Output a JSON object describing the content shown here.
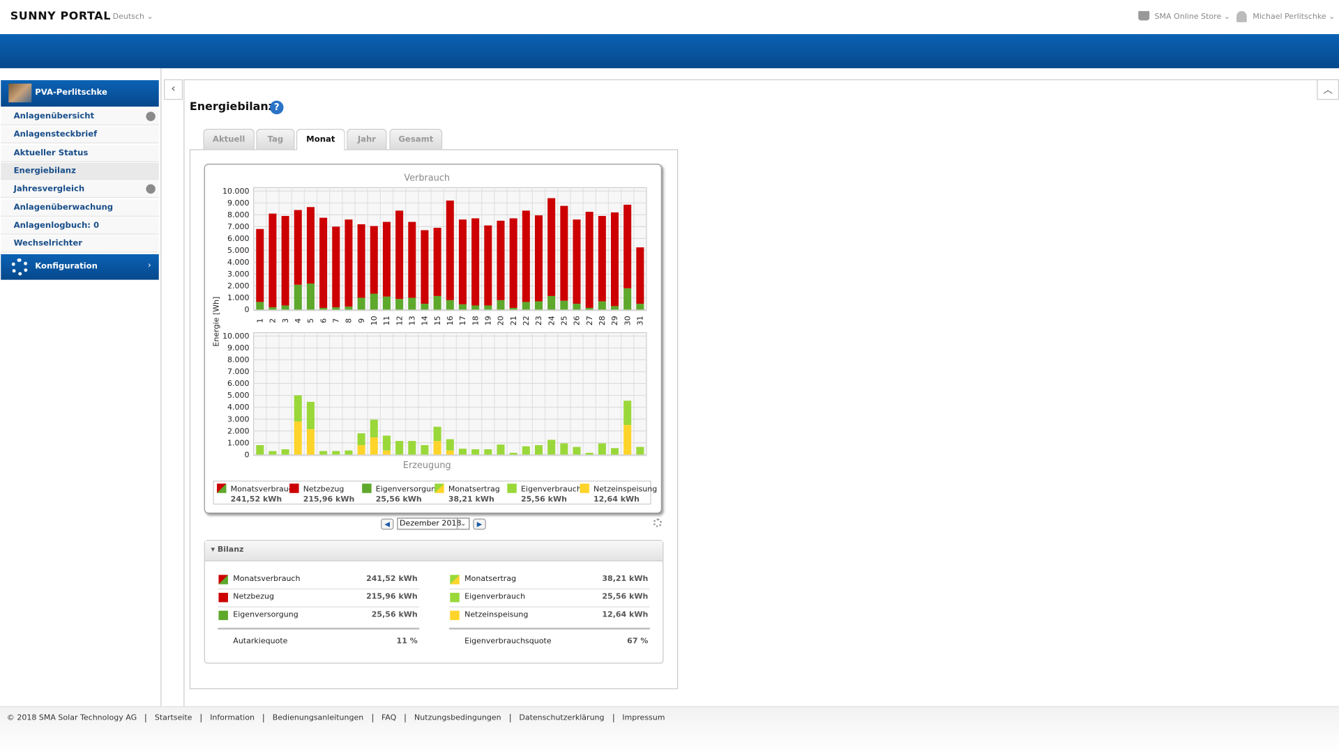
{
  "header": {
    "logo": "SUNNY PORTAL",
    "language": "Deutsch",
    "store": "SMA Online Store",
    "user": "Michael Perlitschke"
  },
  "sidebar": {
    "plant": "PVA-Perlitschke",
    "items": [
      {
        "label": "Anlagenübersicht",
        "globe": true,
        "selected": false
      },
      {
        "label": "Anlagensteckbrief",
        "globe": false,
        "selected": false
      },
      {
        "label": "Aktueller Status",
        "globe": false,
        "selected": false
      },
      {
        "label": "Energiebilanz",
        "globe": false,
        "selected": true
      },
      {
        "label": "Jahresvergleich",
        "globe": true,
        "selected": false
      },
      {
        "label": "Anlagenüberwachung",
        "globe": false,
        "selected": false
      },
      {
        "label": "Anlagenlogbuch: 0",
        "globe": false,
        "selected": false
      },
      {
        "label": "Wechselrichter",
        "globe": false,
        "selected": false
      }
    ],
    "config": "Konfiguration"
  },
  "page": {
    "title": "Energiebilanz",
    "tabs": [
      {
        "label": "Aktuell",
        "active": false
      },
      {
        "label": "Tag",
        "active": false
      },
      {
        "label": "Monat",
        "active": true
      },
      {
        "label": "Jahr",
        "active": false
      },
      {
        "label": "Gesamt",
        "active": false
      }
    ],
    "period": "Dezember 2018"
  },
  "chart_data": [
    {
      "type": "bar",
      "stacked": true,
      "title": "Verbrauch",
      "y_label": "Energie [Wh]",
      "categories": [
        "1",
        "2",
        "3",
        "4",
        "5",
        "6",
        "7",
        "8",
        "9",
        "10",
        "11",
        "12",
        "13",
        "14",
        "15",
        "16",
        "17",
        "18",
        "19",
        "20",
        "21",
        "22",
        "23",
        "24",
        "25",
        "26",
        "27",
        "28",
        "29",
        "30",
        "31"
      ],
      "series": [
        {
          "name": "Eigenversorgung",
          "color": "#5ea82c",
          "values": [
            650,
            200,
            350,
            2100,
            2200,
            150,
            200,
            250,
            1000,
            1350,
            1100,
            900,
            1000,
            500,
            1150,
            800,
            450,
            350,
            350,
            800,
            150,
            650,
            700,
            1150,
            750,
            500,
            150,
            700,
            300,
            1800,
            500
          ]
        },
        {
          "name": "Netzbezug",
          "color": "#cc0000",
          "values": [
            6150,
            7900,
            7550,
            6300,
            6450,
            7600,
            6800,
            7350,
            6200,
            5700,
            6300,
            7450,
            6400,
            6200,
            5750,
            8400,
            7150,
            7350,
            6750,
            6700,
            7550,
            7700,
            7250,
            8250,
            8000,
            7100,
            8100,
            7200,
            7900,
            7050,
            4750
          ]
        }
      ],
      "ylim": [
        0,
        10000
      ],
      "yticks": [
        0,
        {
          "value": 1000,
          "label": "1.000"
        },
        {
          "value": 2000,
          "label": "2.000"
        },
        {
          "value": 3000,
          "label": "3.000"
        },
        {
          "value": 4000,
          "label": "4.000"
        },
        {
          "value": 5000,
          "label": "5.000"
        },
        {
          "value": 6000,
          "label": "6.000"
        },
        {
          "value": 7000,
          "label": "7.000"
        },
        {
          "value": 8000,
          "label": "8.000"
        },
        {
          "value": 9000,
          "label": "9.000"
        },
        {
          "value": 10000,
          "label": "10.000"
        }
      ],
      "grid": true
    },
    {
      "type": "bar",
      "stacked": true,
      "title": "Erzeugung",
      "series": [
        {
          "name": "Netzeinspeisung",
          "color": "#ffd42a",
          "values": [
            0,
            0,
            0,
            2800,
            2150,
            0,
            0,
            0,
            800,
            1450,
            350,
            0,
            0,
            0,
            1150,
            350,
            0,
            0,
            0,
            0,
            0,
            0,
            0,
            0,
            0,
            0,
            0,
            0,
            0,
            2500,
            0
          ]
        },
        {
          "name": "Eigenverbrauch",
          "color": "#9ad83a",
          "values": [
            800,
            300,
            450,
            2200,
            2300,
            300,
            300,
            350,
            1000,
            1500,
            1250,
            1150,
            1150,
            800,
            1200,
            950,
            500,
            450,
            450,
            850,
            150,
            700,
            800,
            1250,
            950,
            650,
            150,
            950,
            550,
            2050,
            650
          ]
        }
      ],
      "ylim": [
        0,
        10000
      ],
      "yticks": [
        0,
        {
          "value": 1000,
          "label": "1.000"
        },
        {
          "value": 2000,
          "label": "2.000"
        },
        {
          "value": 3000,
          "label": "3.000"
        },
        {
          "value": 4000,
          "label": "4.000"
        },
        {
          "value": 5000,
          "label": "5.000"
        },
        {
          "value": 6000,
          "label": "6.000"
        },
        {
          "value": 7000,
          "label": "7.000"
        },
        {
          "value": 8000,
          "label": "8.000"
        },
        {
          "value": 9000,
          "label": "9.000"
        },
        {
          "value": 10000,
          "label": "10.000"
        }
      ],
      "grid": true
    }
  ],
  "legend": [
    {
      "name": "Monatsverbrauch",
      "total": "241,52 kWh",
      "colors": [
        "#cc0000",
        "#5ea82c"
      ]
    },
    {
      "name": "Netzbezug",
      "total": "215,96 kWh",
      "colors": [
        "#cc0000",
        "#cc0000"
      ]
    },
    {
      "name": "Eigenversorgung",
      "total": "25,56 kWh",
      "colors": [
        "#5ea82c",
        "#5ea82c"
      ]
    },
    {
      "name": "Monatsertrag",
      "total": "38,21 kWh",
      "colors": [
        "#9ad83a",
        "#ffd42a"
      ]
    },
    {
      "name": "Eigenverbrauch",
      "total": "25,56 kWh",
      "colors": [
        "#9ad83a",
        "#9ad83a"
      ]
    },
    {
      "name": "Netzeinspeisung",
      "total": "12,64 kWh",
      "colors": [
        "#ffd42a",
        "#ffd42a"
      ]
    }
  ],
  "bilanz": {
    "title": "Bilanz",
    "left": {
      "rows": [
        {
          "label": "Monatsverbrauch",
          "value": "241,52 kWh",
          "colors": [
            "#cc0000",
            "#5ea82c"
          ]
        },
        {
          "label": "Netzbezug",
          "value": "215,96 kWh",
          "colors": [
            "#cc0000",
            "#cc0000"
          ]
        },
        {
          "label": "Eigenversorgung",
          "value": "25,56 kWh",
          "colors": [
            "#5ea82c",
            "#5ea82c"
          ]
        }
      ],
      "quota": {
        "label": "Autarkiequote",
        "value": "11 %"
      }
    },
    "right": {
      "rows": [
        {
          "label": "Monatsertrag",
          "value": "38,21 kWh",
          "colors": [
            "#9ad83a",
            "#ffd42a"
          ]
        },
        {
          "label": "Eigenverbrauch",
          "value": "25,56 kWh",
          "colors": [
            "#9ad83a",
            "#9ad83a"
          ]
        },
        {
          "label": "Netzeinspeisung",
          "value": "12,64 kWh",
          "colors": [
            "#ffd42a",
            "#ffd42a"
          ]
        }
      ],
      "quota": {
        "label": "Eigenverbrauchsquote",
        "value": "67 %"
      }
    }
  },
  "footer": {
    "copyright": "© 2018 SMA Solar Technology AG",
    "links": [
      "Startseite",
      "Information",
      "Bedienungsanleitungen",
      "FAQ",
      "Nutzungsbedingungen",
      "Datenschutzerklärung",
      "Impressum"
    ]
  }
}
